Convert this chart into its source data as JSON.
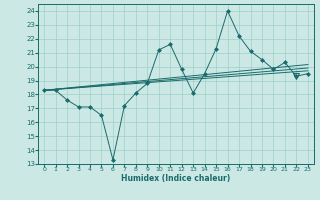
{
  "xlabel": "Humidex (Indice chaleur)",
  "bg_color": "#cce8e5",
  "grid_color": "#9ecfcb",
  "line_color": "#1a6b6b",
  "xlim": [
    -0.5,
    23.5
  ],
  "ylim": [
    13,
    24.5
  ],
  "xticks": [
    0,
    1,
    2,
    3,
    4,
    5,
    6,
    7,
    8,
    9,
    10,
    11,
    12,
    13,
    14,
    15,
    16,
    17,
    18,
    19,
    20,
    21,
    22,
    23
  ],
  "yticks": [
    13,
    14,
    15,
    16,
    17,
    18,
    19,
    20,
    21,
    22,
    23,
    24
  ],
  "main_x": [
    0,
    1,
    2,
    3,
    4,
    5,
    6,
    7,
    8,
    9,
    10,
    11,
    12,
    13,
    14,
    15,
    16,
    17,
    18,
    19,
    20,
    21,
    22,
    23
  ],
  "main_y": [
    18.3,
    18.3,
    17.6,
    17.1,
    17.1,
    16.5,
    13.3,
    17.2,
    18.1,
    18.8,
    21.2,
    21.6,
    19.8,
    18.1,
    19.5,
    21.3,
    24.0,
    22.2,
    21.1,
    20.5,
    19.8,
    20.3,
    19.3,
    19.5
  ],
  "line1_x": [
    0,
    23
  ],
  "line1_y": [
    18.3,
    19.7
  ],
  "line2_x": [
    0,
    23
  ],
  "line2_y": [
    18.3,
    19.9
  ],
  "line3_x": [
    0,
    23
  ],
  "line3_y": [
    18.3,
    20.15
  ],
  "triangle_x": [
    22
  ],
  "triangle_y": [
    19.3
  ]
}
